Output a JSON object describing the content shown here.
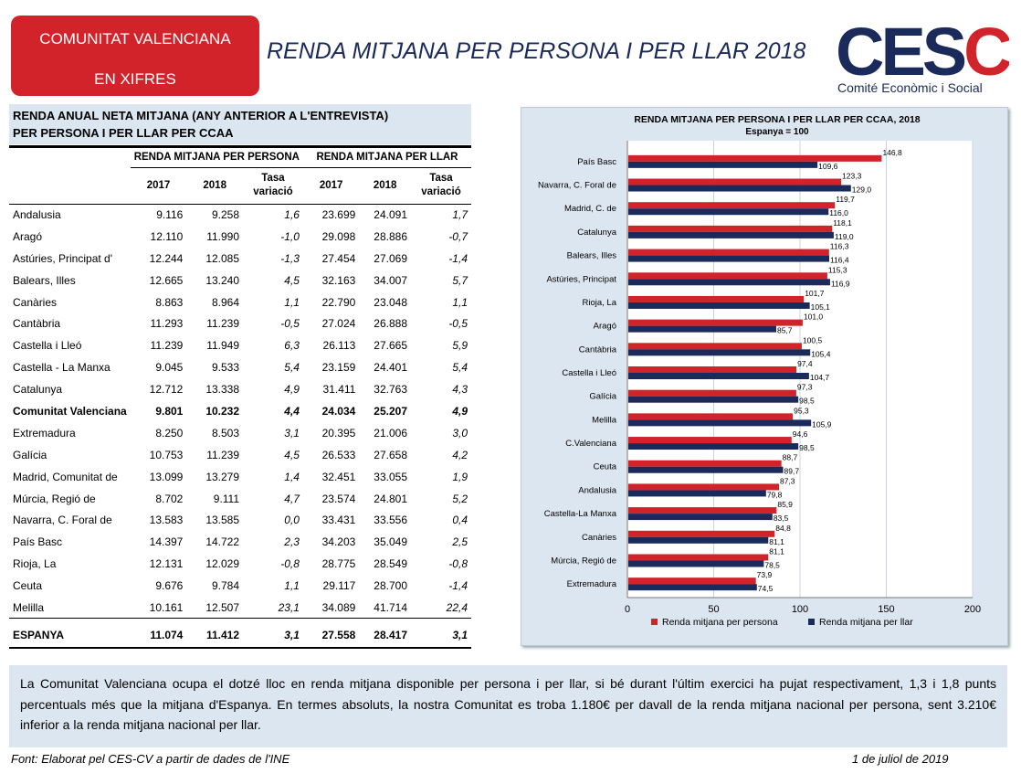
{
  "badge": {
    "line1": "COMUNITAT VALENCIANA",
    "line2": "EN XIFRES"
  },
  "title": "RENDA MITJANA PER PERSONA I PER LLAR 2018",
  "logo": {
    "text": "CESCV",
    "subtitle": "Comité Econòmic i Social",
    "colors": {
      "navy": "#1a2a5a",
      "red": "#d2232a"
    }
  },
  "table": {
    "title_line1": "RENDA ANUAL NETA MITJANA (ANY ANTERIOR A L'ENTREVISTA)",
    "title_line2": "PER PERSONA I PER LLAR PER CCAA",
    "group_persona": "RENDA MITJANA PER PERSONA",
    "group_llar": "RENDA MITJANA PER LLAR",
    "col_2017": "2017",
    "col_2018": "2018",
    "col_rate_1": "Tasa",
    "col_rate_2": "variació",
    "rows": [
      {
        "name": "Andalusia",
        "p2017": "9.116",
        "p2018": "9.258",
        "pvar": "1,6",
        "l2017": "23.699",
        "l2018": "24.091",
        "lvar": "1,7"
      },
      {
        "name": "Aragó",
        "p2017": "12.110",
        "p2018": "11.990",
        "pvar": "-1,0",
        "l2017": "29.098",
        "l2018": "28.886",
        "lvar": "-0,7"
      },
      {
        "name": "Astúries, Principat d'",
        "p2017": "12.244",
        "p2018": "12.085",
        "pvar": "-1,3",
        "l2017": "27.454",
        "l2018": "27.069",
        "lvar": "-1,4"
      },
      {
        "name": "Balears, Illes",
        "p2017": "12.665",
        "p2018": "13.240",
        "pvar": "4,5",
        "l2017": "32.163",
        "l2018": "34.007",
        "lvar": "5,7"
      },
      {
        "name": "Canàries",
        "p2017": "8.863",
        "p2018": "8.964",
        "pvar": "1,1",
        "l2017": "22.790",
        "l2018": "23.048",
        "lvar": "1,1"
      },
      {
        "name": "Cantàbria",
        "p2017": "11.293",
        "p2018": "11.239",
        "pvar": "-0,5",
        "l2017": "27.024",
        "l2018": "26.888",
        "lvar": "-0,5"
      },
      {
        "name": "Castella i Lleó",
        "p2017": "11.239",
        "p2018": "11.949",
        "pvar": "6,3",
        "l2017": "26.113",
        "l2018": "27.665",
        "lvar": "5,9"
      },
      {
        "name": "Castella - La Manxa",
        "p2017": "9.045",
        "p2018": "9.533",
        "pvar": "5,4",
        "l2017": "23.159",
        "l2018": "24.401",
        "lvar": "5,4"
      },
      {
        "name": "Catalunya",
        "p2017": "12.712",
        "p2018": "13.338",
        "pvar": "4,9",
        "l2017": "31.411",
        "l2018": "32.763",
        "lvar": "4,3"
      },
      {
        "name": "Comunitat Valenciana",
        "p2017": "9.801",
        "p2018": "10.232",
        "pvar": "4,4",
        "l2017": "24.034",
        "l2018": "25.207",
        "lvar": "4,9",
        "highlight": true
      },
      {
        "name": "Extremadura",
        "p2017": "8.250",
        "p2018": "8.503",
        "pvar": "3,1",
        "l2017": "20.395",
        "l2018": "21.006",
        "lvar": "3,0"
      },
      {
        "name": "Galícia",
        "p2017": "10.753",
        "p2018": "11.239",
        "pvar": "4,5",
        "l2017": "26.533",
        "l2018": "27.658",
        "lvar": "4,2"
      },
      {
        "name": "Madrid, Comunitat de",
        "p2017": "13.099",
        "p2018": "13.279",
        "pvar": "1,4",
        "l2017": "32.451",
        "l2018": "33.055",
        "lvar": "1,9"
      },
      {
        "name": "Múrcia, Regió de",
        "p2017": "8.702",
        "p2018": "9.111",
        "pvar": "4,7",
        "l2017": "23.574",
        "l2018": "24.801",
        "lvar": "5,2"
      },
      {
        "name": "Navarra, C. Foral de",
        "p2017": "13.583",
        "p2018": "13.585",
        "pvar": "0,0",
        "l2017": "33.431",
        "l2018": "33.556",
        "lvar": "0,4"
      },
      {
        "name": "País Basc",
        "p2017": "14.397",
        "p2018": "14.722",
        "pvar": "2,3",
        "l2017": "34.203",
        "l2018": "35.049",
        "lvar": "2,5"
      },
      {
        "name": "Rioja, La",
        "p2017": "12.131",
        "p2018": "12.029",
        "pvar": "-0,8",
        "l2017": "28.775",
        "l2018": "28.549",
        "lvar": "-0,8"
      },
      {
        "name": "Ceuta",
        "p2017": "9.676",
        "p2018": "9.784",
        "pvar": "1,1",
        "l2017": "29.117",
        "l2018": "28.700",
        "lvar": "-1,4"
      },
      {
        "name": "Melilla",
        "p2017": "10.161",
        "p2018": "12.507",
        "pvar": "23,1",
        "l2017": "34.089",
        "l2018": "41.714",
        "lvar": "22,4"
      }
    ],
    "total": {
      "name": "ESPANYA",
      "p2017": "11.074",
      "p2018": "11.412",
      "pvar": "3,1",
      "l2017": "27.558",
      "l2018": "28.417",
      "lvar": "3,1"
    }
  },
  "chart_data": {
    "type": "bar",
    "orientation": "horizontal",
    "title": "RENDA MITJANA PER PERSONA I PER LLAR PER CCAA, 2018",
    "subtitle": "Espanya = 100",
    "categories": [
      "País Basc",
      "Navarra, C. Foral de",
      "Madrid, C. de",
      "Catalunya",
      "Balears, Illes",
      "Astúries, Principat",
      "Rioja, La",
      "Aragó",
      "Cantàbria",
      "Castella i Lleó",
      "Galícia",
      "Melilla",
      "C.Valenciana",
      "Ceuta",
      "Andalusia",
      "Castella-La Manxa",
      "Canàries",
      "Múrcia, Regió de",
      "Extremadura"
    ],
    "series": [
      {
        "name": "Renda mitjana per persona",
        "color": "#d2232a",
        "values": [
          146.8,
          123.3,
          119.7,
          118.1,
          116.3,
          115.3,
          101.7,
          101.0,
          100.5,
          97.4,
          97.3,
          95.3,
          94.6,
          88.7,
          87.3,
          85.9,
          84.8,
          81.1,
          73.9
        ],
        "labels": [
          "146,8",
          "123,3",
          "119,7",
          "118,1",
          "116,3",
          "115,3",
          "101,7",
          "101,0",
          "100,5",
          "97,4",
          "97,3",
          "95,3",
          "94,6",
          "88,7",
          "87,3",
          "85,9",
          "84,8",
          "81,1",
          "73,9"
        ]
      },
      {
        "name": "Renda mitjana per llar",
        "color": "#1a2a5a",
        "values": [
          109.6,
          129.0,
          116.0,
          119.0,
          116.4,
          116.9,
          105.1,
          85.7,
          105.4,
          104.7,
          98.5,
          105.9,
          98.5,
          89.7,
          79.8,
          83.5,
          81.1,
          78.5,
          74.5
        ],
        "labels": [
          "109,6",
          "129,0",
          "116,0",
          "119,0",
          "116,4",
          "116,9",
          "105,1",
          "85,7",
          "105,4",
          "104,7",
          "98,5",
          "105,9",
          "98,5",
          "89,7",
          "79,8",
          "83,5",
          "81,1",
          "78,5",
          "74,5"
        ]
      }
    ],
    "xlim": [
      0,
      200
    ],
    "xticks": [
      "0",
      "50",
      "100",
      "150",
      "200"
    ],
    "grid": "vertical",
    "legend": "bottom"
  },
  "note": "La Comunitat Valenciana ocupa el dotzé lloc en renda mitjana disponible per persona i per llar, si bé durant l'últim exercici ha pujat respectivament, 1,3 i 1,8 punts percentuals més que la mitjana d'Espanya. En termes absoluts, la nostra Comunitat es troba 1.180€ per davall de la renda mitjana nacional per persona, sent 3.210€ inferior a la renda mitjana nacional per llar.",
  "footer": {
    "source": "Font: Elaborat pel CES-CV a partir de dades de l'INE",
    "date": "1 de juliol de 2019"
  }
}
